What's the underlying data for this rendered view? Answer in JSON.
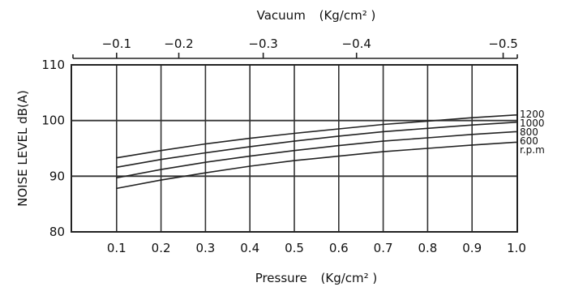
{
  "chart_data": {
    "type": "line",
    "title": "",
    "xlabel": "Pressure",
    "xlabel_unit": "(Kg/cm² )",
    "top_xlabel": "Vacuum",
    "top_xlabel_unit": "(Kg/cm² )",
    "ylabel": "NOISE LEVEL dB(A)",
    "xlim": [
      0,
      1.0
    ],
    "ylim": [
      80,
      110
    ],
    "grid": true,
    "x_ticks": [
      "0.1",
      "0.2",
      "0.3",
      "0.4",
      "0.5",
      "0.6",
      "0.7",
      "0.8",
      "0.9",
      "1.0"
    ],
    "y_ticks": [
      "80",
      "90",
      "100",
      "110"
    ],
    "top_ticks": [
      "-0.1",
      "-0.2",
      "-0.3",
      "-0.4",
      "-0.5"
    ],
    "top_tick_positions": [
      0.1,
      0.24,
      0.43,
      0.64,
      0.97
    ],
    "x": [
      0.1,
      0.2,
      0.3,
      0.4,
      0.5,
      0.6,
      0.7,
      0.8,
      0.9,
      1.0
    ],
    "series": [
      {
        "name": "1200",
        "values": [
          93.3,
          94.6,
          95.8,
          96.8,
          97.7,
          98.5,
          99.3,
          99.9,
          100.5,
          101.0
        ]
      },
      {
        "name": "1000",
        "values": [
          91.6,
          93.0,
          94.2,
          95.3,
          96.3,
          97.2,
          98.0,
          98.6,
          99.2,
          99.7
        ]
      },
      {
        "name": "800",
        "values": [
          89.7,
          91.2,
          92.5,
          93.6,
          94.6,
          95.5,
          96.3,
          96.9,
          97.5,
          98.0
        ]
      },
      {
        "name": "600",
        "values": [
          87.8,
          89.3,
          90.6,
          91.8,
          92.8,
          93.6,
          94.4,
          95.0,
          95.6,
          96.1
        ]
      }
    ],
    "legend_suffix": "r.p.m",
    "legend": "right"
  }
}
